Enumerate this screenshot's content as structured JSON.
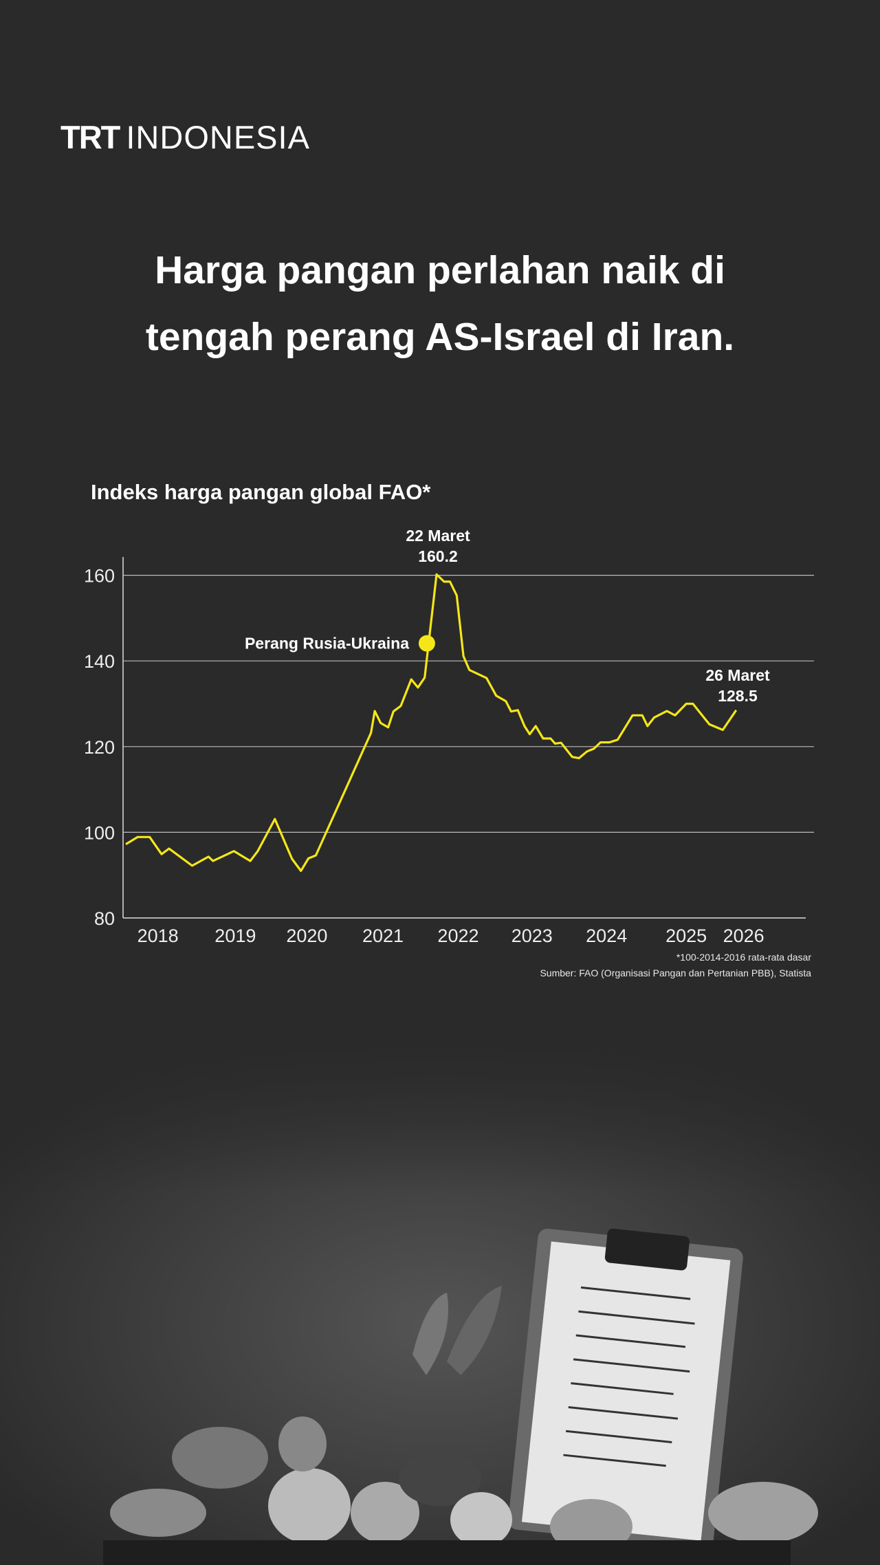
{
  "brand": {
    "logo_bold": "TRT",
    "logo_light": "INDONESIA"
  },
  "title": {
    "line1": "Harga pangan perlahan naik di",
    "line2": "tengah perang AS-Israel di Iran."
  },
  "chart_data": {
    "type": "line",
    "title": "Indeks harga pangan global FAO*",
    "xlabel": "",
    "ylabel": "",
    "ylim": [
      80,
      165
    ],
    "xlim": [
      2018,
      2026.5
    ],
    "yticks": [
      80,
      100,
      120,
      140,
      160
    ],
    "xticks": [
      "2018",
      "2019",
      "2020",
      "2021",
      "2022",
      "2023",
      "2024",
      "2025",
      "2026"
    ],
    "grid": true,
    "line_color": "#f5e61a",
    "series": [
      {
        "x": [
          2018.0,
          2018.16,
          2018.32,
          2018.48,
          2018.58,
          2018.89,
          2019.11,
          2019.17,
          2019.45,
          2019.67,
          2019.77,
          2020.0,
          2020.23,
          2020.35,
          2020.45,
          2020.55,
          2021.29,
          2021.34,
          2021.42,
          2021.52,
          2021.59,
          2021.69,
          2021.83,
          2021.92,
          2022.01,
          2022.17,
          2022.27,
          2022.35,
          2022.44,
          2022.53,
          2022.61,
          2022.84,
          2022.97,
          2023.1,
          2023.17,
          2023.26,
          2023.35,
          2023.42,
          2023.5,
          2023.6,
          2023.7,
          2023.76,
          2023.84,
          2023.99,
          2024.08,
          2024.19,
          2024.28,
          2024.37,
          2024.49,
          2024.6,
          2024.8,
          2024.93,
          2025.0,
          2025.09,
          2025.26,
          2025.37,
          2025.52,
          2025.61,
          2025.83,
          2026.01,
          2026.19
        ],
        "y": [
          97.2,
          98.9,
          98.9,
          94.9,
          96.2,
          92.2,
          94.3,
          93.3,
          95.6,
          93.3,
          95.6,
          103.1,
          93.8,
          91.0,
          93.9,
          94.6,
          123.2,
          128.3,
          125.5,
          124.5,
          128.2,
          129.5,
          135.7,
          133.8,
          136.1,
          160.2,
          158.5,
          158.5,
          155.3,
          141.1,
          137.9,
          136.0,
          131.9,
          130.6,
          128.2,
          128.5,
          124.8,
          122.9,
          124.8,
          121.9,
          121.9,
          120.7,
          120.9,
          117.6,
          117.3,
          118.9,
          119.5,
          121.0,
          121.0,
          121.6,
          127.3,
          127.3,
          124.8,
          126.8,
          128.3,
          127.3,
          130.0,
          130.0,
          125.2,
          123.9,
          128.5
        ]
      }
    ],
    "annotations": [
      {
        "label": "22 Maret",
        "value_label": "160.2",
        "x": 2022.17,
        "y": 160.2
      },
      {
        "label": "26 Maret",
        "value_label": "128.5",
        "x": 2026.19,
        "y": 128.5
      },
      {
        "label": "Perang Rusia-Ukraina",
        "x": 2022.04,
        "y": 144.1,
        "marker": "dot"
      }
    ],
    "footnote": "*100-2014-2016 rata-rata dasar",
    "source": "Sumber: FAO (Organisasi Pangan dan Pertanian PBB), Statista"
  }
}
